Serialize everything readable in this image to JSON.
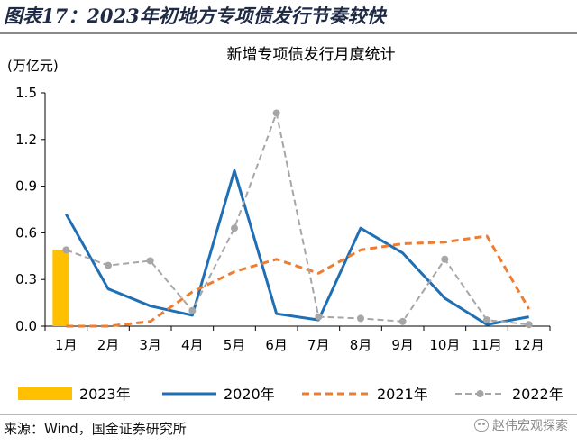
{
  "figure": {
    "title": "图表17：2023年初地方专项债发行节奏较快",
    "source": "来源：Wind，国金证券研究所",
    "watermark": "赵伟宏观探索"
  },
  "chart_data": {
    "type": "line",
    "title": "新增专项债发行月度统计",
    "ylabel": "(万亿元)",
    "xlabel": "",
    "categories": [
      "1月",
      "2月",
      "3月",
      "4月",
      "5月",
      "6月",
      "7月",
      "8月",
      "9月",
      "10月",
      "11月",
      "12月"
    ],
    "ylim": [
      0,
      1.5
    ],
    "yticks": [
      0.0,
      0.3,
      0.6,
      0.9,
      1.2,
      1.5
    ],
    "ytick_labels": [
      "0.0",
      "0.3",
      "0.6",
      "0.9",
      "1.2",
      "1.5"
    ],
    "grid": false,
    "legend_position": "bottom",
    "series": [
      {
        "name": "2023年",
        "type": "bar",
        "color": "#FFC000",
        "values": [
          0.49,
          null,
          null,
          null,
          null,
          null,
          null,
          null,
          null,
          null,
          null,
          null
        ]
      },
      {
        "name": "2020年",
        "type": "line",
        "style": "solid",
        "color": "#1F6FB5",
        "values": [
          0.72,
          0.24,
          0.13,
          0.07,
          1.0,
          0.08,
          0.04,
          0.63,
          0.47,
          0.18,
          0.01,
          0.06
        ]
      },
      {
        "name": "2021年",
        "type": "line",
        "style": "dashed",
        "color": "#ED7D31",
        "values": [
          0.0,
          0.0,
          0.03,
          0.22,
          0.35,
          0.43,
          0.34,
          0.49,
          0.53,
          0.54,
          0.58,
          0.11
        ]
      },
      {
        "name": "2022年",
        "type": "line",
        "style": "dashed-marker",
        "color": "#A6A6A6",
        "values": [
          0.49,
          0.39,
          0.42,
          0.1,
          0.63,
          1.37,
          0.06,
          0.05,
          0.03,
          0.43,
          0.04,
          0.01
        ]
      }
    ]
  }
}
